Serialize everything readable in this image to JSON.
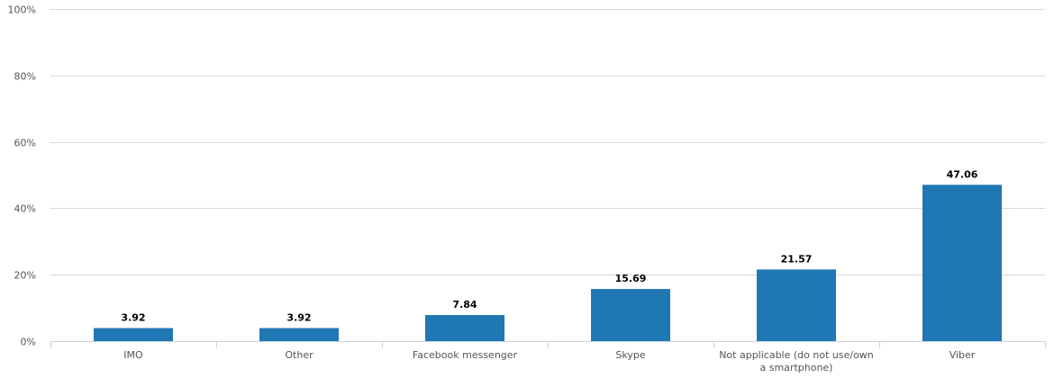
{
  "chart_data": {
    "type": "bar",
    "categories": [
      "IMO",
      "Other",
      "Facebook messenger",
      "Skype",
      "Not applicable (do not use/own a smartphone)",
      "Viber"
    ],
    "category_lines": [
      [
        "IMO"
      ],
      [
        "Other"
      ],
      [
        "Facebook messenger"
      ],
      [
        "Skype"
      ],
      [
        "Not applicable (do not use/own",
        "a smartphone)"
      ],
      [
        "Viber"
      ]
    ],
    "values": [
      3.92,
      3.92,
      7.84,
      15.69,
      21.57,
      47.06
    ],
    "value_labels": [
      "3.92",
      "3.92",
      "7.84",
      "15.69",
      "21.57",
      "47.06"
    ],
    "ylim": [
      0,
      100
    ],
    "y_ticks": [
      0,
      20,
      40,
      60,
      80,
      100
    ],
    "y_tick_labels": [
      "0%",
      "20%",
      "40%",
      "60%",
      "80%",
      "100%"
    ],
    "bar_color": "#1f77b4",
    "grid": true,
    "title": "",
    "xlabel": "",
    "ylabel": ""
  }
}
